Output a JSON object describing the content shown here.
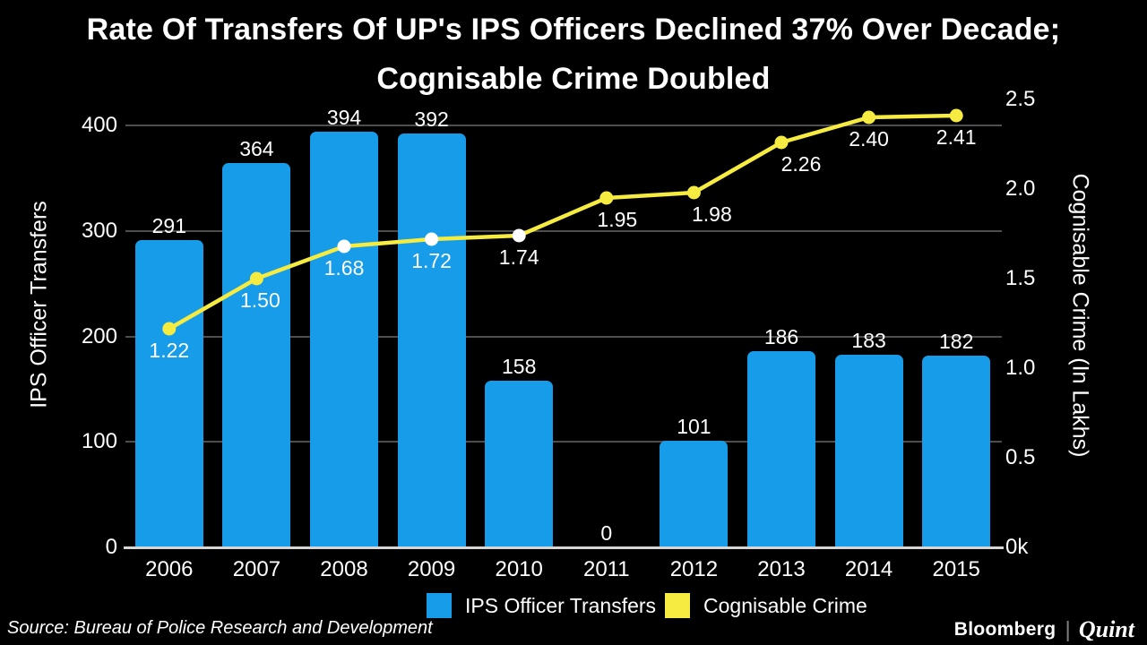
{
  "title": {
    "line1": "Rate Of Transfers Of UP's IPS Officers Declined 37% Over Decade;",
    "line2": "Cognisable Crime Doubled"
  },
  "source": "Source: Bureau of Police Research and Development",
  "logo": {
    "bloomberg": "Bloomberg",
    "separator": "|",
    "quint": "Quint"
  },
  "colors": {
    "background": "#000000",
    "bar_blue": "#169CE8",
    "line_yellow": "#F5EB41",
    "marker_white": "#FFFFFF",
    "text_white": "#FFFFFF",
    "gridline_gray": "#4E4E4E",
    "axis_line_gray": "#D6D6D6"
  },
  "legend": {
    "items": [
      {
        "label": "IPS Officer Transfers",
        "color": "#169CE8"
      },
      {
        "label": "Cognisable Crime",
        "color": "#F5EB41"
      }
    ]
  },
  "chart_data": {
    "type": "combo",
    "categories": [
      "2006",
      "2007",
      "2008",
      "2009",
      "2010",
      "2011",
      "2012",
      "2013",
      "2014",
      "2015"
    ],
    "series": [
      {
        "name": "IPS Officer Transfers",
        "type": "bar",
        "axis": "left",
        "color": "#169CE8",
        "values": [
          291,
          364,
          394,
          392,
          158,
          0,
          101,
          186,
          183,
          182
        ],
        "data_labels": [
          "291",
          "364",
          "394",
          "392",
          "158",
          "0",
          "101",
          "186",
          "183",
          "182"
        ]
      },
      {
        "name": "Cognisable Crime",
        "type": "line",
        "axis": "right",
        "color": "#F5EB41",
        "values": [
          1.22,
          1.5,
          1.68,
          1.72,
          1.74,
          1.95,
          1.98,
          2.26,
          2.4,
          2.41
        ],
        "data_labels": [
          "1.22",
          "1.50",
          "1.68",
          "1.72",
          "1.74",
          "1.95",
          "1.98",
          "2.26",
          "2.40",
          "2.41"
        ],
        "marker_fills": [
          "#F5EB41",
          "#F5EB41",
          "#FFFFFF",
          "#FFFFFF",
          "#FFFFFF",
          "#F5EB41",
          "#F5EB41",
          "#F5EB41",
          "#F5EB41",
          "#F5EB41"
        ]
      }
    ],
    "left_axis": {
      "label": "IPS Officer Transfers",
      "ticks": [
        "0",
        "100",
        "200",
        "300",
        "400"
      ],
      "min": 0,
      "max": 400
    },
    "right_axis": {
      "label": "Cognisable Crime (In Lakhs)",
      "ticks": [
        "0k",
        "0.5",
        "1.0",
        "1.5",
        "2.0",
        "2.5"
      ],
      "min": 0,
      "max": 2.5
    },
    "grid": true,
    "legend_position": "bottom"
  }
}
